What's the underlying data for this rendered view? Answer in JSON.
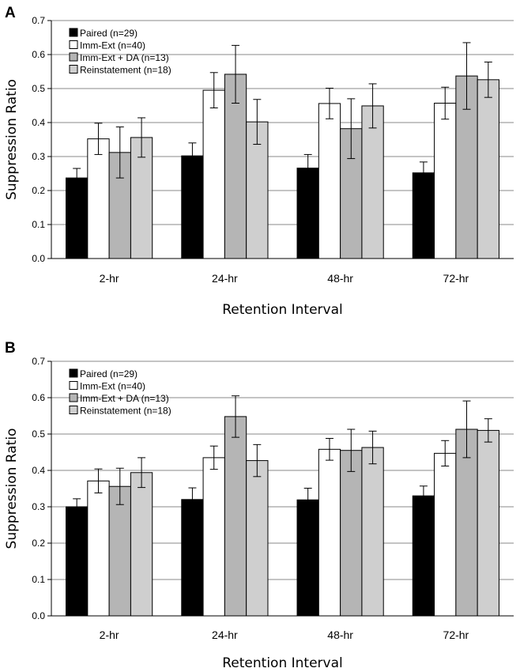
{
  "chart_data": [
    {
      "panel": "A",
      "type": "bar",
      "xlabel": "Retention Interval",
      "ylabel": "Suppression Ratio",
      "ylim": [
        0,
        0.7
      ],
      "yticks": [
        "0.0",
        "0.1",
        "0.2",
        "0.3",
        "0.4",
        "0.5",
        "0.6",
        "0.7"
      ],
      "grid": true,
      "legend_position": "top-left",
      "categories": [
        "2-hr",
        "24-hr",
        "48-hr",
        "72-hr"
      ],
      "series": [
        {
          "name": "Paired (n=29)",
          "color": "#000000",
          "values": [
            0.237,
            0.302,
            0.266,
            0.252
          ],
          "errors": [
            0.028,
            0.038,
            0.04,
            0.032
          ]
        },
        {
          "name": "Imm-Ext (n=40)",
          "color": "#ffffff",
          "values": [
            0.352,
            0.495,
            0.456,
            0.457
          ],
          "errors": [
            0.046,
            0.052,
            0.045,
            0.047
          ]
        },
        {
          "name": "Imm-Ext + DA (n=13)",
          "color": "#b5b5b5",
          "values": [
            0.312,
            0.542,
            0.382,
            0.537
          ],
          "errors": [
            0.075,
            0.085,
            0.088,
            0.098
          ]
        },
        {
          "name": "Reinstatement (n=18)",
          "color": "#cfcfcf",
          "values": [
            0.356,
            0.402,
            0.449,
            0.526
          ],
          "errors": [
            0.058,
            0.066,
            0.065,
            0.052
          ]
        }
      ]
    },
    {
      "panel": "B",
      "type": "bar",
      "xlabel": "Retention Interval",
      "ylabel": "Suppression Ratio",
      "ylim": [
        0,
        0.7
      ],
      "yticks": [
        "0.0",
        "0.1",
        "0.2",
        "0.3",
        "0.4",
        "0.5",
        "0.6",
        "0.7"
      ],
      "grid": true,
      "legend_position": "top-left",
      "categories": [
        "2-hr",
        "24-hr",
        "48-hr",
        "72-hr"
      ],
      "series": [
        {
          "name": "Paired (n=29)",
          "color": "#000000",
          "values": [
            0.3,
            0.32,
            0.319,
            0.33
          ],
          "errors": [
            0.022,
            0.032,
            0.032,
            0.027
          ]
        },
        {
          "name": "Imm-Ext (n=40)",
          "color": "#ffffff",
          "values": [
            0.371,
            0.435,
            0.458,
            0.447
          ],
          "errors": [
            0.033,
            0.032,
            0.03,
            0.035
          ]
        },
        {
          "name": "Imm-Ext + DA (n=13)",
          "color": "#b5b5b5",
          "values": [
            0.356,
            0.548,
            0.455,
            0.513
          ],
          "errors": [
            0.05,
            0.057,
            0.058,
            0.078
          ]
        },
        {
          "name": "Reinstatement (n=18)",
          "color": "#cfcfcf",
          "values": [
            0.394,
            0.427,
            0.463,
            0.51
          ],
          "errors": [
            0.041,
            0.044,
            0.045,
            0.032
          ]
        }
      ]
    }
  ]
}
